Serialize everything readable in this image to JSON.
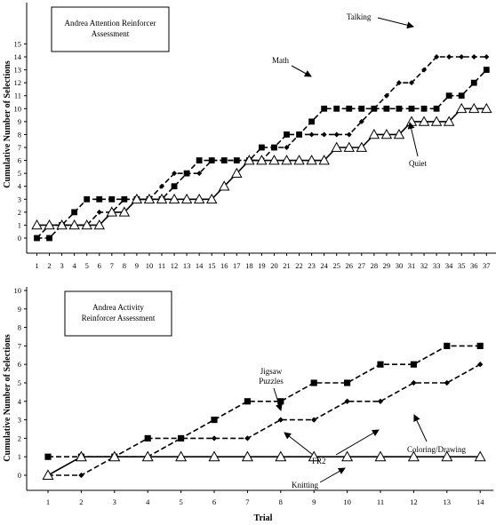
{
  "chart_data": [
    {
      "type": "line",
      "title": "Andrea Attention Reinforcer Assessment",
      "title_lines": [
        "Andrea Attention Reinforcer",
        "Assessment"
      ],
      "xlabel": "",
      "ylabel": "Cumulative Number of Selections",
      "x": [
        1,
        2,
        3,
        4,
        5,
        6,
        7,
        8,
        9,
        10,
        11,
        12,
        13,
        14,
        15,
        16,
        17,
        18,
        19,
        20,
        21,
        22,
        23,
        24,
        25,
        26,
        27,
        28,
        29,
        30,
        31,
        32,
        33,
        34,
        35,
        36,
        37
      ],
      "xlim": [
        1,
        37
      ],
      "ylim": [
        0,
        15
      ],
      "yticks": [
        0,
        1,
        2,
        3,
        4,
        5,
        6,
        7,
        8,
        9,
        10,
        11,
        12,
        13,
        14,
        15
      ],
      "series": [
        {
          "name": "Talking",
          "marker": "diamond",
          "values": [
            0,
            1,
            1,
            1,
            1,
            2,
            2,
            3,
            3,
            3,
            4,
            5,
            5,
            5,
            6,
            6,
            6,
            6,
            6,
            7,
            7,
            8,
            8,
            8,
            8,
            8,
            9,
            10,
            11,
            12,
            12,
            13,
            14,
            14,
            14,
            14,
            14
          ]
        },
        {
          "name": "Math",
          "marker": "square",
          "values": [
            0,
            0,
            1,
            2,
            3,
            3,
            3,
            3,
            3,
            3,
            3,
            4,
            5,
            6,
            6,
            6,
            6,
            6,
            7,
            7,
            8,
            8,
            9,
            10,
            10,
            10,
            10,
            10,
            10,
            10,
            10,
            10,
            10,
            11,
            11,
            12,
            13
          ]
        },
        {
          "name": "Quiet",
          "marker": "triangle",
          "values": [
            1,
            1,
            1,
            1,
            1,
            1,
            2,
            2,
            3,
            3,
            3,
            3,
            3,
            3,
            3,
            4,
            5,
            6,
            6,
            6,
            6,
            6,
            6,
            6,
            7,
            7,
            7,
            8,
            8,
            8,
            9,
            9,
            9,
            9,
            10,
            10,
            10
          ]
        }
      ],
      "annotations": [
        {
          "text": "Talking",
          "series": "Talking"
        },
        {
          "text": "Math",
          "series": "Math"
        },
        {
          "text": "Quiet",
          "series": "Quiet"
        }
      ]
    },
    {
      "type": "line",
      "title": "Andrea Activity Reinforcer Assessment",
      "title_lines": [
        "Andrea Activity",
        "Reinforcer Assessment"
      ],
      "xlabel": "Trial",
      "ylabel": "Cumulative Number of Selections",
      "x": [
        1,
        2,
        3,
        4,
        5,
        6,
        7,
        8,
        9,
        10,
        11,
        12,
        13,
        14
      ],
      "xlim": [
        1,
        14
      ],
      "ylim": [
        0,
        10
      ],
      "yticks": [
        0,
        1,
        2,
        3,
        4,
        5,
        6,
        7,
        8,
        9,
        10
      ],
      "series": [
        {
          "name": "Jigsaw Puzzles",
          "marker": "square",
          "values": [
            1,
            1,
            1,
            2,
            2,
            3,
            4,
            4,
            5,
            5,
            6,
            6,
            7,
            7
          ]
        },
        {
          "name": "Coloring/Drawing",
          "marker": "diamond",
          "values": [
            0,
            0,
            1,
            1,
            2,
            2,
            2,
            3,
            3,
            4,
            4,
            5,
            5,
            6
          ]
        },
        {
          "name": "Knitting",
          "marker": "triangle",
          "values": [
            0,
            1,
            1,
            1,
            1,
            1,
            1,
            1,
            1,
            1,
            1,
            1,
            1,
            1
          ]
        }
      ],
      "annotations": [
        {
          "text_lines": [
            "Jigsaw",
            "Puzzles"
          ],
          "series": "Jigsaw Puzzles"
        },
        {
          "text": "FR2"
        },
        {
          "text": "Coloring/Drawing",
          "series": "Coloring/Drawing"
        },
        {
          "text": "Knitting",
          "series": "Knitting"
        }
      ]
    }
  ]
}
